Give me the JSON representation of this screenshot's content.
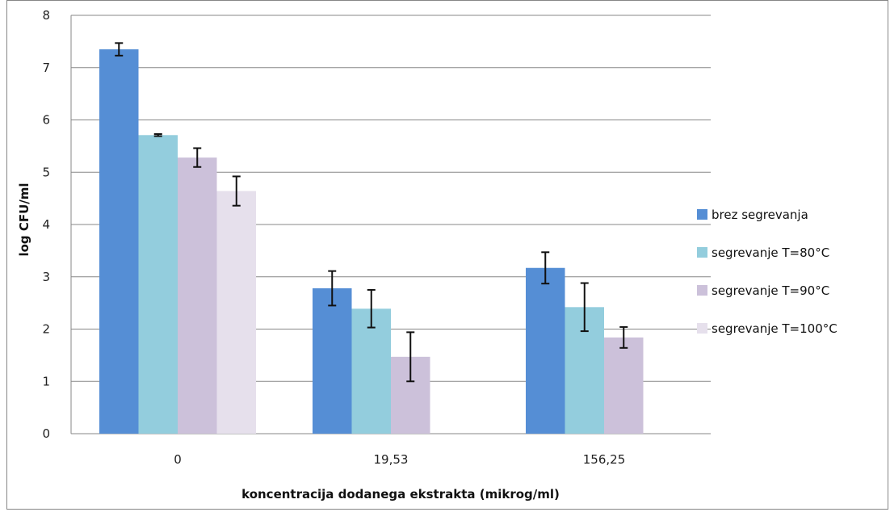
{
  "chart_data": {
    "type": "bar",
    "title": "",
    "xlabel": "koncentracija dodanega ekstrakta (mikrog/ml)",
    "ylabel": "log CFU/ml",
    "ylim": [
      0,
      8
    ],
    "yticks": [
      0,
      1,
      2,
      3,
      4,
      5,
      6,
      7,
      8
    ],
    "categories": [
      "0",
      "19,53",
      "156,25"
    ],
    "grid": true,
    "legend_position": "right",
    "series": [
      {
        "name": "brez segrevanja",
        "color": "#558ED5",
        "values": [
          7.35,
          2.78,
          3.17
        ],
        "errors": [
          0.12,
          0.33,
          0.3
        ]
      },
      {
        "name": "segrevanje T=80°C",
        "color": "#93CDDD",
        "values": [
          5.71,
          2.39,
          2.42
        ],
        "errors": [
          0.02,
          0.36,
          0.46
        ]
      },
      {
        "name": "segrevanje T=90°C",
        "color": "#CCC1DA",
        "values": [
          5.28,
          1.47,
          1.84
        ],
        "errors": [
          0.18,
          0.47,
          0.2
        ]
      },
      {
        "name": "segrevanje T=100°C",
        "color": "#E6E0EC",
        "values": [
          4.64,
          null,
          null
        ],
        "errors": [
          0.28,
          null,
          null
        ]
      }
    ]
  }
}
